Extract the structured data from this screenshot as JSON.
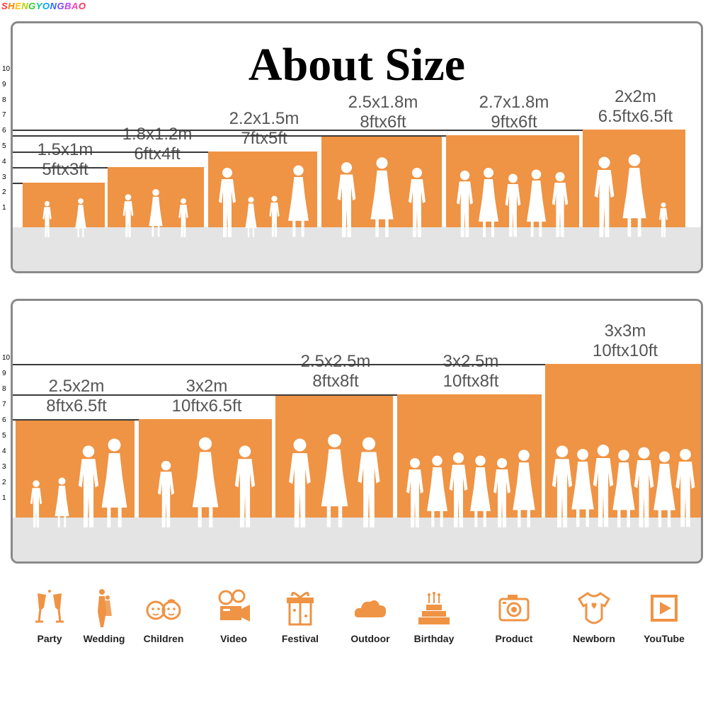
{
  "brand": {
    "letters": [
      "S",
      "H",
      "E",
      "N",
      "G",
      "Y",
      "O",
      "N",
      "G",
      "B",
      "A",
      "O"
    ],
    "colors": [
      "#ff3030",
      "#ff7a00",
      "#ffc400",
      "#b5d400",
      "#33cc33",
      "#00c8a0",
      "#00a8ff",
      "#3366ff",
      "#7a44ff",
      "#c040ff",
      "#ff40b0",
      "#ff3060"
    ]
  },
  "title": "About Size",
  "scale_ticks": [
    "10",
    "9",
    "8",
    "7",
    "6",
    "5",
    "4",
    "3",
    "2",
    "1"
  ],
  "top_sizes": [
    {
      "metric": "1.5x1m",
      "imperial": "5ftx3ft"
    },
    {
      "metric": "1.8x1.2m",
      "imperial": "6ftx4ft"
    },
    {
      "metric": "2.2x1.5m",
      "imperial": "7ftx5ft"
    },
    {
      "metric": "2.5x1.8m",
      "imperial": "8ftx6ft"
    },
    {
      "metric": "2.7x1.8m",
      "imperial": "9ftx6ft"
    },
    {
      "metric": "2x2m",
      "imperial": "6.5ftx6.5ft"
    }
  ],
  "bottom_sizes": [
    {
      "metric": "2.5x2m",
      "imperial": "8ftx6.5ft"
    },
    {
      "metric": "3x2m",
      "imperial": "10ftx6.5ft"
    },
    {
      "metric": "2.5x2.5m",
      "imperial": "8ftx8ft"
    },
    {
      "metric": "3x2.5m",
      "imperial": "10ftx8ft"
    },
    {
      "metric": "3x3m",
      "imperial": "10ftx10ft"
    }
  ],
  "colors": {
    "backdrop": "#ef9344",
    "floor": "#e4e4e4",
    "border": "#8a8a8a",
    "icon": "#ef9344"
  },
  "uses": [
    {
      "label": "Party",
      "icon": "champagne-glasses-icon"
    },
    {
      "label": "Wedding",
      "icon": "wedding-couple-icon"
    },
    {
      "label": "Children",
      "icon": "children-faces-icon"
    },
    {
      "label": "Video",
      "icon": "film-camera-icon"
    },
    {
      "label": "Festival",
      "icon": "gift-box-icon"
    },
    {
      "label": "Outdoor",
      "icon": "cloud-icon"
    },
    {
      "label": "Birthday",
      "icon": "birthday-cake-icon"
    },
    {
      "label": "Product",
      "icon": "photo-camera-icon"
    },
    {
      "label": "Newborn",
      "icon": "baby-onesie-icon"
    },
    {
      "label": "YouTube",
      "icon": "play-button-icon"
    }
  ]
}
